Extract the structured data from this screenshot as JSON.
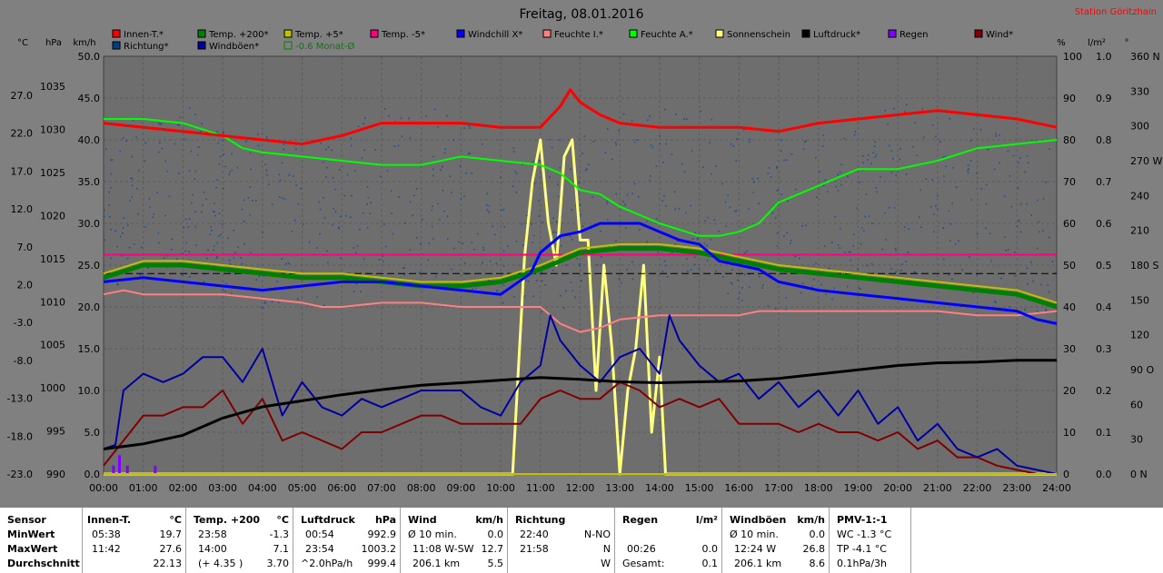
{
  "chart_data": {
    "type": "line",
    "title": "Freitag, 08.01.2016",
    "station": "Station Göritzhain",
    "unit_labels": {
      "celsius": "°C",
      "hpa": "hPa",
      "kmh": "km/h",
      "percent": "%",
      "lm2": "l/m²",
      "degree": "°"
    },
    "legend": [
      {
        "label": "Innen-T.*",
        "color": "#ff0000"
      },
      {
        "label": "Temp. +200*",
        "color": "#008000"
      },
      {
        "label": "Temp. +5*",
        "color": "#c0c000"
      },
      {
        "label": "Temp. -5*",
        "color": "#ff0080"
      },
      {
        "label": "Windchill X*",
        "color": "#0000ff"
      },
      {
        "label": "Feuchte I.*",
        "color": "#ff8080"
      },
      {
        "label": "Feuchte A.*",
        "color": "#00ff00"
      },
      {
        "label": "Sonnenschein",
        "color": "#ffff80"
      },
      {
        "label": "Luftdruck*",
        "color": "#000000"
      },
      {
        "label": "Regen",
        "color": "#8000ff"
      },
      {
        "label": "Wind*",
        "color": "#800000"
      },
      {
        "label": "Richtung*",
        "color": "#004080"
      },
      {
        "label": "Windböen*",
        "color": "#0000a0"
      },
      {
        "label": "-0.6 Monat-Ø",
        "color": "#008000",
        "outline": true
      }
    ],
    "axes": {
      "celsius_ticks": [
        "27.0",
        "22.0",
        "17.0",
        "12.0",
        "7.0",
        "2.0",
        "-3.0",
        "-8.0",
        "-13.0",
        "-18.0",
        "-23.0"
      ],
      "hpa_ticks": [
        "1035",
        "1030",
        "1025",
        "1020",
        "1015",
        "1010",
        "1005",
        "1000",
        "995",
        "990"
      ],
      "kmh_ticks": [
        "50.0",
        "45.0",
        "40.0",
        "35.0",
        "30.0",
        "25.0",
        "20.0",
        "15.0",
        "10.0",
        "5.0",
        "0.0"
      ],
      "percent_ticks": [
        "100",
        "90",
        "80",
        "70",
        "60",
        "50",
        "40",
        "30",
        "20",
        "10",
        "0"
      ],
      "rain_ticks": [
        "1.0",
        "0.9",
        "0.8",
        "0.7",
        "0.6",
        "0.5",
        "0.4",
        "0.3",
        "0.2",
        "0.1",
        "0.0"
      ],
      "degree_ticks": [
        "360 N",
        "330",
        "300",
        "270 W",
        "240",
        "210",
        "180 S",
        "150",
        "120",
        "90 O",
        "60",
        "30",
        "0 N"
      ],
      "x_ticks": [
        "00:00",
        "01:00",
        "02:00",
        "03:00",
        "04:00",
        "05:00",
        "06:00",
        "07:00",
        "08:00",
        "09:00",
        "10:00",
        "11:00",
        "12:00",
        "13:00",
        "14:00",
        "15:00",
        "16:00",
        "17:00",
        "18:00",
        "19:00",
        "20:00",
        "21:00",
        "22:00",
        "23:00",
        "24:00"
      ],
      "ylim_kmh": [
        0,
        50
      ],
      "ylim_hpa": [
        990,
        1038.5
      ],
      "ylim_percent": [
        0,
        100
      ],
      "ylim_celsius": [
        -23,
        32.16
      ],
      "grid": true
    },
    "series": [
      {
        "name": "Innen-T.*",
        "axis": "percent",
        "color": "#ff0000",
        "width": 3,
        "x": [
          0,
          1,
          2,
          3,
          4,
          5,
          6,
          7,
          8,
          9,
          10,
          11,
          11.5,
          11.75,
          12,
          12.5,
          13,
          14,
          15,
          16,
          17,
          18,
          19,
          20,
          21,
          22,
          23,
          24
        ],
        "y": [
          84,
          83,
          82,
          81,
          80,
          79,
          81,
          84,
          84,
          84,
          83,
          83,
          88,
          92,
          89,
          86,
          84,
          83,
          83,
          83,
          82,
          84,
          85,
          86,
          87,
          86,
          85,
          83
        ]
      },
      {
        "name": "Feuchte A.*",
        "axis": "percent",
        "color": "#00ff00",
        "width": 2,
        "x": [
          0,
          1,
          2,
          3,
          3.5,
          4,
          5,
          6,
          7,
          8,
          9,
          10,
          11,
          11.5,
          12,
          12.5,
          13,
          14,
          15,
          15.5,
          16,
          16.5,
          17,
          18,
          19,
          20,
          21,
          22,
          23,
          24
        ],
        "y": [
          85,
          85,
          84,
          81,
          78,
          77,
          76,
          75,
          74,
          74,
          76,
          75,
          74,
          72,
          68,
          67,
          64,
          60,
          57,
          57,
          58,
          60,
          65,
          69,
          73,
          73,
          75,
          78,
          79,
          80
        ]
      },
      {
        "name": "Temp. -5*",
        "axis": "percent",
        "color": "#ff0080",
        "width": 2,
        "x": [
          0,
          24
        ],
        "y": [
          52.5,
          52.5
        ]
      },
      {
        "name": "-0.6 Monat-Ø",
        "axis": "percent",
        "color": "#000000",
        "width": 1,
        "dash": "8,4",
        "x": [
          0,
          24
        ],
        "y": [
          48,
          48
        ]
      },
      {
        "name": "Temp. +5*",
        "axis": "percent",
        "color": "#c0c000",
        "width": 2,
        "x": [
          0,
          1,
          2,
          3,
          4,
          5,
          6,
          7,
          8,
          9,
          10,
          11,
          12,
          13,
          14,
          15,
          16,
          17,
          18,
          19,
          20,
          21,
          22,
          23,
          24
        ],
        "y": [
          48,
          51,
          51,
          50,
          49,
          48,
          48,
          47,
          46,
          46,
          47,
          50,
          54,
          55,
          55,
          54,
          52,
          50,
          49,
          48,
          47,
          46,
          45,
          44,
          41
        ]
      },
      {
        "name": "Temp. +200*",
        "axis": "percent",
        "color": "#008000",
        "width": 5,
        "x": [
          0,
          1,
          2,
          3,
          4,
          5,
          6,
          7,
          8,
          9,
          10,
          11,
          12,
          13,
          14,
          15,
          16,
          17,
          18,
          19,
          20,
          21,
          22,
          23,
          24
        ],
        "y": [
          47,
          50,
          50,
          49,
          48,
          47,
          47,
          46,
          45,
          45,
          46,
          49,
          53,
          54,
          54,
          53,
          51,
          49,
          48,
          47,
          46,
          45,
          44,
          43,
          40
        ]
      },
      {
        "name": "Feuchte I.*",
        "axis": "percent",
        "color": "#ff8080",
        "width": 2,
        "x": [
          0,
          0.5,
          1,
          2,
          3,
          4,
          5,
          5.5,
          6,
          7,
          8,
          9,
          10,
          11,
          11.5,
          12,
          12.5,
          13,
          14,
          15,
          16,
          16.5,
          17,
          18,
          19,
          20,
          21,
          22,
          23,
          24
        ],
        "y": [
          43,
          44,
          43,
          43,
          43,
          42,
          41,
          40,
          40,
          41,
          41,
          40,
          40,
          40,
          36,
          34,
          35,
          37,
          38,
          38,
          38,
          39,
          39,
          39,
          39,
          39,
          39,
          38,
          38,
          39
        ]
      },
      {
        "name": "Windchill X*",
        "axis": "percent",
        "color": "#0000ff",
        "width": 3,
        "x": [
          0,
          1,
          2,
          3,
          4,
          5,
          6,
          7,
          8,
          9,
          10,
          10.75,
          11,
          11.5,
          12,
          12.5,
          13,
          13.5,
          14,
          14.5,
          15,
          15.5,
          16,
          16.5,
          17,
          18,
          19,
          20,
          21,
          22,
          23,
          23.5,
          24
        ],
        "y": [
          46,
          47,
          46,
          45,
          44,
          45,
          46,
          46,
          45,
          44,
          43,
          48,
          53,
          57,
          58,
          60,
          60,
          60,
          58,
          56,
          55,
          51,
          50,
          49,
          46,
          44,
          43,
          42,
          41,
          40,
          39,
          37,
          36
        ]
      },
      {
        "name": "Luftdruck*",
        "axis": "hpa",
        "color": "#000000",
        "width": 3,
        "x": [
          0,
          1,
          2,
          3,
          4,
          5,
          6,
          7,
          8,
          9,
          10,
          11,
          12,
          13,
          14,
          15,
          16,
          17,
          18,
          19,
          20,
          21,
          22,
          23,
          24
        ],
        "y": [
          992.9,
          993.5,
          994.5,
          996.5,
          997.8,
          998.5,
          999.2,
          999.8,
          1000.3,
          1000.6,
          1000.9,
          1001.2,
          1001.0,
          1000.7,
          1000.6,
          1000.7,
          1000.8,
          1001.1,
          1001.6,
          1002.1,
          1002.6,
          1002.9,
          1003.0,
          1003.2,
          1003.2
        ]
      },
      {
        "name": "Windböen*",
        "axis": "kmh",
        "color": "#0000a0",
        "width": 2,
        "x": [
          0,
          0.3,
          0.5,
          1,
          1.5,
          2,
          2.5,
          3,
          3.5,
          4,
          4.5,
          5,
          5.5,
          6,
          6.5,
          7,
          7.5,
          8,
          8.5,
          9,
          9.5,
          10,
          10.5,
          11,
          11.25,
          11.5,
          12,
          12.5,
          13,
          13.5,
          14,
          14.25,
          14.5,
          15,
          15.5,
          16,
          16.5,
          17,
          17.5,
          18,
          18.5,
          19,
          19.5,
          20,
          20.5,
          21,
          21.5,
          22,
          22.5,
          23,
          23.5,
          24
        ],
        "y": [
          3,
          3.5,
          10,
          12,
          11,
          12,
          14,
          14,
          11,
          15,
          7,
          11,
          8,
          7,
          9,
          8,
          9,
          10,
          10,
          10,
          8,
          7,
          11,
          13,
          19,
          16,
          13,
          11,
          14,
          15,
          12,
          19,
          16,
          13,
          11,
          12,
          9,
          11,
          8,
          10,
          7,
          10,
          6,
          8,
          4,
          6,
          3,
          2,
          3,
          1,
          0.5,
          0
        ]
      },
      {
        "name": "Wind*",
        "axis": "kmh",
        "color": "#800000",
        "width": 2,
        "x": [
          0,
          0.5,
          1,
          1.5,
          2,
          2.5,
          3,
          3.5,
          4,
          4.5,
          5,
          5.5,
          6,
          6.5,
          7,
          7.5,
          8,
          8.5,
          9,
          9.5,
          10,
          10.5,
          11,
          11.5,
          12,
          12.5,
          13,
          13.5,
          14,
          14.5,
          15,
          15.5,
          16,
          16.5,
          17,
          17.5,
          18,
          18.5,
          19,
          19.5,
          20,
          20.5,
          21,
          21.5,
          22,
          22.5,
          23,
          23.5,
          24
        ],
        "y": [
          1,
          4,
          7,
          7,
          8,
          8,
          10,
          6,
          9,
          4,
          5,
          4,
          3,
          5,
          5,
          6,
          7,
          7,
          6,
          6,
          6,
          6,
          9,
          10,
          9,
          9,
          11,
          10,
          8,
          9,
          8,
          9,
          6,
          6,
          6,
          5,
          6,
          5,
          5,
          4,
          5,
          3,
          4,
          2,
          2,
          1,
          0.5,
          0,
          0
        ]
      },
      {
        "name": "Sonnenschein",
        "axis": "kmh",
        "color": "#ffff80",
        "width": 3,
        "x": [
          0,
          10.3,
          10.6,
          10.8,
          11,
          11.2,
          11.4,
          11.6,
          11.8,
          12,
          12.2,
          12.4,
          12.6,
          12.8,
          13,
          13.2,
          13.4,
          13.6,
          13.8,
          14,
          14.15,
          24
        ],
        "y": [
          0,
          0,
          26,
          35,
          40,
          30,
          25,
          38,
          40,
          28,
          28,
          10,
          25,
          15,
          0,
          10,
          15,
          25,
          5,
          14,
          0,
          0
        ]
      },
      {
        "name": "Regen",
        "axis": "rain",
        "color": "#8000ff",
        "type": "bar",
        "x": [
          0.25,
          0.4,
          0.6,
          1.3
        ],
        "y": [
          0.02,
          0.045,
          0.02,
          0.02
        ]
      }
    ]
  },
  "summary": {
    "headers": {
      "sensor": "Sensor",
      "innen": "Innen-T.",
      "innen_unit": "°C",
      "temp200": "Temp. +200",
      "temp200_unit": "°C",
      "druck": "Luftdruck",
      "druck_unit": "hPa",
      "wind": "Wind",
      "wind_unit": "km/h",
      "richtung": "Richtung",
      "regen": "Regen",
      "regen_unit": "l/m²",
      "boeen": "Windböen",
      "boeen_unit": "km/h",
      "pmv": "PMV-1:-1"
    },
    "row_labels": [
      "MinWert",
      "MaxWert",
      "Durchschnitt"
    ],
    "innen": [
      [
        "05:38",
        "19.7"
      ],
      [
        "11:42",
        "27.6"
      ],
      [
        "",
        "22.13"
      ]
    ],
    "temp200": [
      [
        "23:58",
        "-1.3"
      ],
      [
        "14:00",
        "7.1"
      ],
      [
        "(+ 4.35 )",
        "3.70"
      ]
    ],
    "druck": [
      [
        "00:54",
        "992.9"
      ],
      [
        "23:54",
        "1003.2"
      ],
      [
        "^2.0hPa/h",
        "999.4"
      ]
    ],
    "wind": [
      [
        "Ø 10 min.",
        "0.0"
      ],
      [
        "11:08   W-SW",
        "12.7"
      ],
      [
        "206.1 km",
        "5.5"
      ]
    ],
    "richtung": [
      [
        "22:40",
        "N-NO"
      ],
      [
        "21:58",
        "N"
      ],
      [
        "",
        "W"
      ]
    ],
    "regen": [
      [
        "",
        ""
      ],
      [
        "00:26",
        "0.0"
      ],
      [
        "Gesamt:",
        "0.1"
      ]
    ],
    "boeen": [
      [
        "Ø 10 min.",
        "0.0"
      ],
      [
        "12:24      W",
        "26.8"
      ],
      [
        "206.1 km",
        "8.6"
      ]
    ],
    "pmv": [
      "WC -1.3 °C",
      "TP -4.1 °C",
      "0.1hPa/3h"
    ]
  }
}
